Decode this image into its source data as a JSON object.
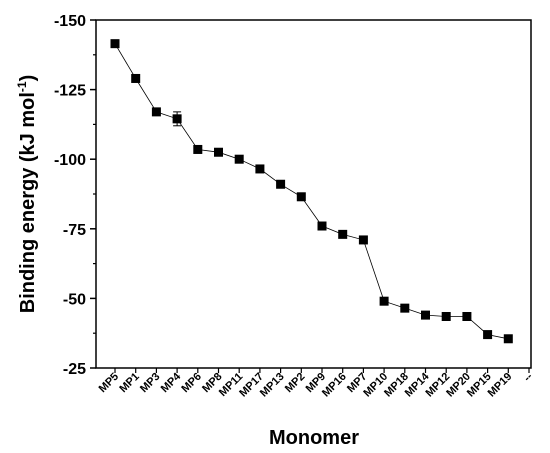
{
  "chart_data": {
    "type": "line",
    "xlabel": "Monomer",
    "ylabel_main": "Binding energy  (kJ mol",
    "ylabel_sup": "-1",
    "ylabel_close": ")",
    "categories": [
      "MP5",
      "MP1",
      "MP3",
      "MP4",
      "MP6",
      "MP8",
      "MP11",
      "MP17",
      "MP13",
      "MP2",
      "MP9",
      "MP16",
      "MP7",
      "MP10",
      "MP18",
      "MP14",
      "MP12",
      "MP20",
      "MP15",
      "MP19"
    ],
    "values": [
      -141.5,
      -129,
      -117,
      -114.5,
      -103.5,
      -102.5,
      -100,
      -96.5,
      -91,
      -86.5,
      -76,
      -73,
      -71,
      -49,
      -46.5,
      -44,
      -43.5,
      -43.5,
      -37,
      -35.5
    ],
    "error_bars": [
      null,
      null,
      null,
      2.5,
      null,
      null,
      null,
      null,
      null,
      null,
      null,
      null,
      null,
      null,
      null,
      null,
      null,
      null,
      null,
      null
    ],
    "yticks": [
      -150,
      -125,
      -100,
      -75,
      -50,
      -25
    ],
    "ylim": [
      -150,
      -25
    ],
    "y_axis_reversed": true,
    "extra_tick_label": "--",
    "series_color": "#000000",
    "marker": "square"
  }
}
